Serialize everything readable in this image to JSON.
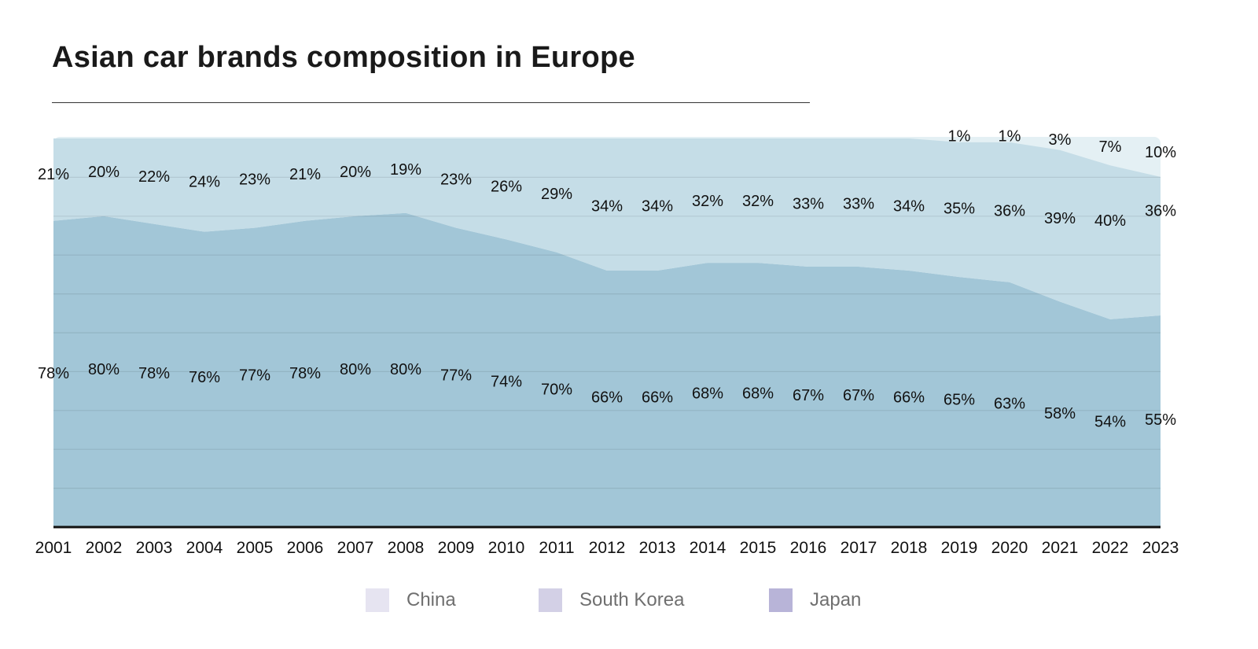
{
  "chart_data": {
    "type": "area",
    "stacked": true,
    "title": "Asian car brands composition in Europe",
    "x": [
      "2001",
      "2002",
      "2003",
      "2004",
      "2005",
      "2006",
      "2007",
      "2008",
      "2009",
      "2010",
      "2011",
      "2012",
      "2013",
      "2014",
      "2015",
      "2016",
      "2017",
      "2018",
      "2019",
      "2020",
      "2021",
      "2022",
      "2023"
    ],
    "series": [
      {
        "name": "Japan",
        "color": "#a2c6d7",
        "values": [
          78,
          80,
          78,
          76,
          77,
          78,
          80,
          80,
          77,
          74,
          70,
          66,
          66,
          68,
          68,
          67,
          67,
          66,
          65,
          63,
          58,
          54,
          55
        ],
        "labels": [
          "78%",
          "80%",
          "78%",
          "76%",
          "77%",
          "78%",
          "80%",
          "80%",
          "77%",
          "74%",
          "70%",
          "66%",
          "66%",
          "68%",
          "68%",
          "67%",
          "67%",
          "66%",
          "65%",
          "63%",
          "58%",
          "54%",
          "55%"
        ]
      },
      {
        "name": "South Korea",
        "color": "#c5dde7",
        "values": [
          21,
          20,
          22,
          24,
          23,
          21,
          20,
          19,
          23,
          26,
          29,
          34,
          34,
          32,
          32,
          33,
          33,
          34,
          35,
          36,
          39,
          40,
          36
        ],
        "labels": [
          "21%",
          "20%",
          "22%",
          "24%",
          "23%",
          "21%",
          "20%",
          "19%",
          "23%",
          "26%",
          "29%",
          "34%",
          "34%",
          "32%",
          "32%",
          "33%",
          "33%",
          "34%",
          "35%",
          "36%",
          "39%",
          "40%",
          "36%"
        ]
      },
      {
        "name": "China",
        "color": "#e4f0f4",
        "values": [
          0,
          0,
          0,
          0,
          0,
          0,
          0,
          0,
          0,
          0,
          0,
          0,
          0,
          0,
          0,
          0,
          0,
          0,
          1,
          1,
          3,
          7,
          10
        ],
        "labels": [
          "",
          "",
          "",
          "",
          "",
          "",
          "",
          "",
          "",
          "",
          "",
          "",
          "",
          "",
          "",
          "",
          "",
          "",
          "1%",
          "1%",
          "3%",
          "7%",
          "10%"
        ]
      }
    ],
    "ylim": [
      0,
      100
    ],
    "grid": true,
    "legend": {
      "position": "bottom",
      "entries": [
        {
          "name": "China",
          "color": "#e6e4f1"
        },
        {
          "name": "South Korea",
          "color": "#d3d0e6"
        },
        {
          "name": "Japan",
          "color": "#b8b4d8"
        }
      ]
    }
  }
}
